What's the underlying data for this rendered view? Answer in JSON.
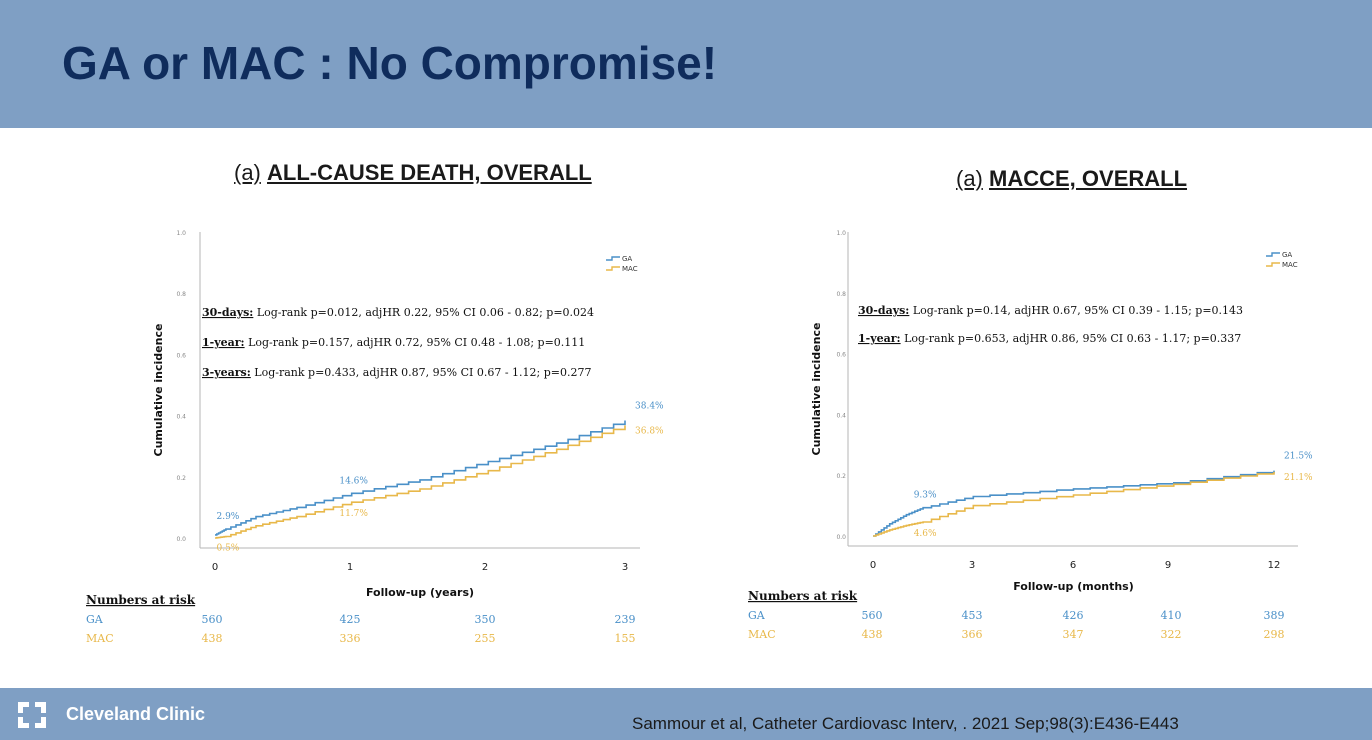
{
  "header": {
    "title": "GA or MAC : No Compromise!"
  },
  "footer": {
    "brand": "Cleveland Clinic",
    "citation": "Sammour et al, Catheter Cardiovasc Interv, . 2021 Sep;98(3):E436-E443"
  },
  "colors": {
    "ga": "#4a90c8",
    "mac": "#e8b84a",
    "header_bg": "#7f9fc4",
    "title": "#0f2c5c"
  },
  "chart_data": [
    {
      "type": "line",
      "panel_prefix": "(a)",
      "title": "ALL-CAUSE DEATH, OVERALL",
      "xlabel": "Follow-up (years)",
      "ylabel": "Cumulative incidence",
      "xlim": [
        0,
        3
      ],
      "ylim": [
        0,
        1.0
      ],
      "xticks": [
        "0",
        "1",
        "2",
        "3"
      ],
      "yticks": [
        "0.0",
        "0.2",
        "0.4",
        "0.6",
        "0.8",
        "1.0"
      ],
      "legend": [
        "GA",
        "MAC"
      ],
      "legend_position": "top-right",
      "series": [
        {
          "name": "GA",
          "x": [
            0,
            0.08,
            0.3,
            0.6,
            1.0,
            1.5,
            2.0,
            2.5,
            3.0
          ],
          "values": [
            0.01,
            0.029,
            0.07,
            0.1,
            0.146,
            0.19,
            0.25,
            0.31,
            0.384
          ]
        },
        {
          "name": "MAC",
          "x": [
            0,
            0.08,
            0.3,
            0.6,
            1.0,
            1.5,
            2.0,
            2.5,
            3.0
          ],
          "values": [
            0.0,
            0.005,
            0.04,
            0.07,
            0.117,
            0.16,
            0.22,
            0.29,
            0.368
          ]
        }
      ],
      "annotations": {
        "ga": [
          {
            "x": 0.08,
            "label": "2.9%"
          },
          {
            "x": 1.0,
            "label": "14.6%"
          },
          {
            "x": 3.0,
            "label": "38.4%"
          }
        ],
        "mac": [
          {
            "x": 0.08,
            "label": "0.5%"
          },
          {
            "x": 1.0,
            "label": "11.7%"
          },
          {
            "x": 3.0,
            "label": "36.8%"
          }
        ]
      },
      "stats": [
        {
          "label": "30-days:",
          "text": " Log-rank p=0.012, adjHR 0.22, 95% CI 0.06 - 0.82; p=0.024"
        },
        {
          "label": "1-year:",
          "text": " Log-rank p=0.157, adjHR 0.72, 95% CI 0.48 - 1.08; p=0.111"
        },
        {
          "label": "3-years:",
          "text": " Log-rank p=0.433, adjHR 0.87, 95% CI 0.67 - 1.12; p=0.277"
        }
      ],
      "risk_table": {
        "title": "Numbers at risk",
        "rows": [
          {
            "label": "GA",
            "values": [
              "560",
              "425",
              "350",
              "239"
            ]
          },
          {
            "label": "MAC",
            "values": [
              "438",
              "336",
              "255",
              "155"
            ]
          }
        ]
      }
    },
    {
      "type": "line",
      "panel_prefix": "(a)",
      "title": "MACCE, OVERALL",
      "xlabel": "Follow-up (months)",
      "ylabel": "Cumulative incidence",
      "xlim": [
        0,
        12
      ],
      "ylim": [
        0,
        1.0
      ],
      "xticks": [
        "0",
        "3",
        "6",
        "9",
        "12"
      ],
      "yticks": [
        "0.0",
        "0.2",
        "0.4",
        "0.6",
        "0.8",
        "1.0"
      ],
      "legend": [
        "GA",
        "MAC"
      ],
      "legend_position": "top-right",
      "series": [
        {
          "name": "GA",
          "x": [
            0,
            0.5,
            1.0,
            1.5,
            3.0,
            6.0,
            9.0,
            12.0
          ],
          "values": [
            0.0,
            0.04,
            0.07,
            0.093,
            0.13,
            0.155,
            0.175,
            0.215
          ]
        },
        {
          "name": "MAC",
          "x": [
            0,
            0.5,
            1.0,
            1.5,
            3.0,
            6.0,
            9.0,
            12.0
          ],
          "values": [
            0.0,
            0.02,
            0.035,
            0.046,
            0.1,
            0.135,
            0.17,
            0.211
          ]
        }
      ],
      "annotations": {
        "ga": [
          {
            "x": 1.5,
            "label": "9.3%"
          },
          {
            "x": 12.0,
            "label": "21.5%"
          }
        ],
        "mac": [
          {
            "x": 1.5,
            "label": "4.6%"
          },
          {
            "x": 12.0,
            "label": "21.1%"
          }
        ]
      },
      "stats": [
        {
          "label": "30-days:",
          "text": " Log-rank p=0.14, adjHR 0.67, 95% CI 0.39 - 1.15; p=0.143"
        },
        {
          "label": "1-year:",
          "text": " Log-rank p=0.653, adjHR 0.86, 95% CI 0.63 - 1.17; p=0.337"
        }
      ],
      "risk_table": {
        "title": "Numbers at risk",
        "rows": [
          {
            "label": "GA",
            "values": [
              "560",
              "453",
              "426",
              "410",
              "389"
            ]
          },
          {
            "label": "MAC",
            "values": [
              "438",
              "366",
              "347",
              "322",
              "298"
            ]
          }
        ]
      }
    }
  ]
}
